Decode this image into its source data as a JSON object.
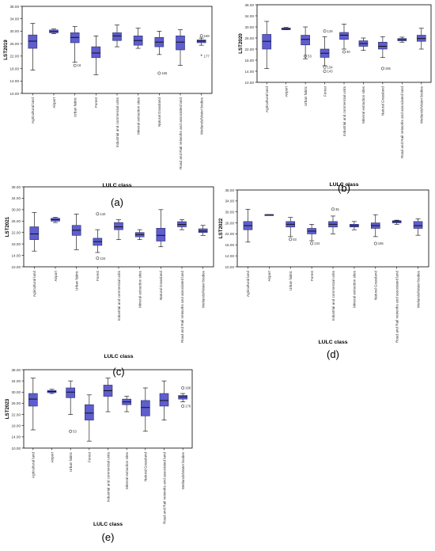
{
  "chart_data": [
    {
      "type": "box",
      "panel_label": "(a)",
      "ylabel": "LST2019",
      "xlabel": "LULC class",
      "ylim": [
        10,
        38
      ],
      "yticks": [
        10,
        14,
        18,
        22,
        26,
        30,
        34,
        38
      ],
      "ytick_labels": [
        "10.00",
        "14.00",
        "18.00",
        "22.00",
        "26.00",
        "30.00",
        "34.00",
        "38.00"
      ],
      "categories": [
        "Agricultural land",
        "Airport",
        "Urban fabric",
        "Forest",
        "Industrial and commercial units",
        "Mineral extraction sites",
        "Natural Grassland",
        "Road and Rail networks and associated land",
        "Wetlands/Water bodies"
      ],
      "boxes": [
        {
          "min": 17.5,
          "q1": 24.5,
          "median": 26.8,
          "q3": 28.8,
          "max": 32.5
        },
        {
          "min": 29.2,
          "q1": 29.5,
          "median": 29.9,
          "q3": 30.4,
          "max": 30.7
        },
        {
          "min": 20.0,
          "q1": 26.3,
          "median": 28.0,
          "q3": 29.5,
          "max": 31.5
        },
        {
          "min": 16.0,
          "q1": 21.5,
          "median": 23.0,
          "q3": 25.0,
          "max": 28.5
        },
        {
          "min": 25.0,
          "q1": 27.0,
          "median": 28.5,
          "q3": 29.5,
          "max": 32.0
        },
        {
          "min": 24.5,
          "q1": 25.5,
          "median": 27.0,
          "q3": 28.5,
          "max": 31.0
        },
        {
          "min": 22.5,
          "q1": 25.0,
          "median": 26.5,
          "q3": 28.0,
          "max": 30.0
        },
        {
          "min": 19.0,
          "q1": 24.0,
          "median": 26.5,
          "q3": 28.5,
          "max": 30.5
        },
        {
          "min": 25.5,
          "q1": 26.3,
          "median": 26.8,
          "q3": 27.2,
          "max": 27.8
        }
      ],
      "outliers": [
        {
          "category": 2,
          "value": 19.0,
          "marker": "circle",
          "label": "16"
        },
        {
          "category": 6,
          "value": 16.5,
          "marker": "circle",
          "label": "165"
        },
        {
          "category": 8,
          "value": 28.5,
          "marker": "circle",
          "label": "168"
        },
        {
          "category": 8,
          "value": 22.0,
          "marker": "star",
          "label": "177"
        }
      ]
    },
    {
      "type": "box",
      "panel_label": "(b)",
      "ylabel": "LST2020",
      "xlabel": "LULC class",
      "ylim": [
        10,
        38
      ],
      "yticks": [
        10,
        14,
        18,
        22,
        26,
        30,
        34,
        38
      ],
      "ytick_labels": [
        "10.00",
        "14.00",
        "18.00",
        "22.00",
        "26.00",
        "30.00",
        "34.00",
        "38.00"
      ],
      "categories": [
        "Agricultural land",
        "Airport",
        "Urban fabric",
        "Forest",
        "Industrial and commercial units",
        "Mineral extraction sites",
        "Natural Grassland",
        "Road and Rail networks and associated land",
        "Wetlands/Water bodies"
      ],
      "boxes": [
        {
          "min": 15.0,
          "q1": 22.0,
          "median": 24.8,
          "q3": 27.3,
          "max": 32.0
        },
        {
          "min": 29.0,
          "q1": 29.0,
          "median": 29.2,
          "q3": 29.6,
          "max": 29.8
        },
        {
          "min": 18.5,
          "q1": 23.5,
          "median": 25.5,
          "q3": 27.0,
          "max": 30.0
        },
        {
          "min": 16.0,
          "q1": 19.0,
          "median": 20.5,
          "q3": 22.0,
          "max": 26.5
        },
        {
          "min": 22.0,
          "q1": 25.5,
          "median": 27.0,
          "q3": 28.0,
          "max": 31.0
        },
        {
          "min": 21.5,
          "q1": 23.0,
          "median": 24.0,
          "q3": 25.0,
          "max": 26.0
        },
        {
          "min": 19.0,
          "q1": 22.0,
          "median": 23.0,
          "q3": 24.5,
          "max": 26.5
        },
        {
          "min": 24.5,
          "q1": 25.0,
          "median": 25.4,
          "q3": 25.8,
          "max": 26.3
        },
        {
          "min": 22.0,
          "q1": 24.8,
          "median": 25.8,
          "q3": 27.0,
          "max": 29.5
        }
      ],
      "outliers": [
        {
          "category": 2,
          "value": 19.5,
          "marker": "circle",
          "label": "53"
        },
        {
          "category": 3,
          "value": 28.5,
          "marker": "circle",
          "label": "129"
        },
        {
          "category": 3,
          "value": 15.5,
          "marker": "circle",
          "label": "134"
        },
        {
          "category": 3,
          "value": 14.0,
          "marker": "circle",
          "label": "143"
        },
        {
          "category": 4,
          "value": 21.0,
          "marker": "circle",
          "label": "30"
        },
        {
          "category": 6,
          "value": 15.0,
          "marker": "circle",
          "label": "165"
        }
      ]
    },
    {
      "type": "box",
      "panel_label": "(c)",
      "ylabel": "LST2021",
      "xlabel": "LULC class",
      "ylim": [
        10,
        38
      ],
      "yticks": [
        10,
        14,
        18,
        22,
        26,
        30,
        34,
        38
      ],
      "ytick_labels": [
        "10.00",
        "14.00",
        "18.00",
        "22.00",
        "26.00",
        "30.00",
        "34.00",
        "38.00"
      ],
      "categories": [
        "Agricultural land",
        "Airport",
        "Urban fabric",
        "Forest",
        "Industrial and commercial units",
        "Mineral extraction sites",
        "Natural Grassland",
        "Road and Rail networks and associated land",
        "Wetlands/Water bodies"
      ],
      "boxes": [
        {
          "min": 15.5,
          "q1": 19.5,
          "median": 21.5,
          "q3": 24.0,
          "max": 29.0
        },
        {
          "min": 25.5,
          "q1": 26.0,
          "median": 26.5,
          "q3": 27.0,
          "max": 27.3
        },
        {
          "min": 16.0,
          "q1": 21.0,
          "median": 22.8,
          "q3": 24.5,
          "max": 28.5
        },
        {
          "min": 15.0,
          "q1": 17.5,
          "median": 18.8,
          "q3": 20.0,
          "max": 23.0
        },
        {
          "min": 19.5,
          "q1": 23.0,
          "median": 24.0,
          "q3": 25.5,
          "max": 26.5
        },
        {
          "min": 19.5,
          "q1": 20.5,
          "median": 21.3,
          "q3": 22.0,
          "max": 23.0
        },
        {
          "min": 17.0,
          "q1": 19.0,
          "median": 21.0,
          "q3": 23.5,
          "max": 30.0
        },
        {
          "min": 23.0,
          "q1": 24.0,
          "median": 24.8,
          "q3": 25.8,
          "max": 26.5
        },
        {
          "min": 21.0,
          "q1": 22.0,
          "median": 22.5,
          "q3": 23.3,
          "max": 24.5
        }
      ],
      "outliers": [
        {
          "category": 3,
          "value": 28.5,
          "marker": "circle",
          "label": "140"
        },
        {
          "category": 3,
          "value": 13.0,
          "marker": "circle",
          "label": "134"
        }
      ]
    },
    {
      "type": "box",
      "panel_label": "(d)",
      "ylabel": "LST2022",
      "xlabel": "LULC class",
      "ylim": [
        10,
        38
      ],
      "yticks": [
        10,
        14,
        18,
        22,
        26,
        30,
        34,
        38
      ],
      "ytick_labels": [
        "10.00",
        "14.00",
        "18.00",
        "22.00",
        "26.00",
        "30.00",
        "34.00",
        "38.00"
      ],
      "categories": [
        "Agricultural land",
        "Airport",
        "Urban fabric",
        "Forest",
        "Industrial and commercial units",
        "Mineral extraction sites",
        "Natural Grassland",
        "Road and Rail networks and associated land",
        "Wetlands/Water bodies"
      ],
      "boxes": [
        {
          "min": 19.0,
          "q1": 23.5,
          "median": 25.0,
          "q3": 26.5,
          "max": 31.0
        },
        {
          "min": 29.0,
          "q1": 29.0,
          "median": 29.0,
          "q3": 29.0,
          "max": 29.0
        },
        {
          "min": 21.0,
          "q1": 24.5,
          "median": 25.5,
          "q3": 26.5,
          "max": 28.0
        },
        {
          "min": 19.5,
          "q1": 22.0,
          "median": 23.0,
          "q3": 24.0,
          "max": 25.5
        },
        {
          "min": 22.0,
          "q1": 24.5,
          "median": 25.5,
          "q3": 26.5,
          "max": 28.5
        },
        {
          "min": 23.5,
          "q1": 24.5,
          "median": 25.0,
          "q3": 25.5,
          "max": 26.5
        },
        {
          "min": 21.0,
          "q1": 24.0,
          "median": 25.0,
          "q3": 26.0,
          "max": 29.0
        },
        {
          "min": 25.5,
          "q1": 26.0,
          "median": 26.5,
          "q3": 26.8,
          "max": 27.0
        },
        {
          "min": 21.5,
          "q1": 24.0,
          "median": 25.0,
          "q3": 26.5,
          "max": 27.5
        }
      ],
      "outliers": [
        {
          "category": 2,
          "value": 20.0,
          "marker": "circle",
          "label": "53"
        },
        {
          "category": 3,
          "value": 18.5,
          "marker": "circle",
          "label": "134"
        },
        {
          "category": 4,
          "value": 31.0,
          "marker": "circle",
          "label": "35"
        },
        {
          "category": 6,
          "value": 18.5,
          "marker": "circle",
          "label": "165"
        }
      ]
    },
    {
      "type": "box",
      "panel_label": "(e)",
      "ylabel": "LST2023",
      "xlabel": "LULC class",
      "ylim": [
        10,
        38
      ],
      "yticks": [
        10,
        14,
        18,
        22,
        26,
        30,
        34,
        38
      ],
      "ytick_labels": [
        "10.00",
        "14.00",
        "18.00",
        "22.00",
        "26.00",
        "30.00",
        "34.00",
        "38.00"
      ],
      "categories": [
        "Agricultural land",
        "Airport",
        "Urban fabric",
        "Forest",
        "Industrial and commercial units",
        "Mineral extraction sites",
        "Natural Grassland",
        "Road and Rail networks and associated land",
        "Wetlands/Water bodies"
      ],
      "boxes": [
        {
          "min": 16.5,
          "q1": 25.0,
          "median": 27.5,
          "q3": 29.5,
          "max": 35.0
        },
        {
          "min": 29.5,
          "q1": 29.8,
          "median": 30.2,
          "q3": 30.6,
          "max": 31.0
        },
        {
          "min": 22.0,
          "q1": 28.0,
          "median": 30.0,
          "q3": 31.5,
          "max": 34.0
        },
        {
          "min": 12.5,
          "q1": 20.0,
          "median": 22.5,
          "q3": 25.5,
          "max": 29.0
        },
        {
          "min": 23.0,
          "q1": 28.5,
          "median": 30.5,
          "q3": 32.5,
          "max": 35.0
        },
        {
          "min": 23.0,
          "q1": 25.5,
          "median": 26.5,
          "q3": 27.5,
          "max": 28.5
        },
        {
          "min": 16.0,
          "q1": 21.5,
          "median": 24.5,
          "q3": 27.0,
          "max": 31.5
        },
        {
          "min": 20.0,
          "q1": 25.0,
          "median": 27.0,
          "q3": 29.5,
          "max": 34.0
        },
        {
          "min": 26.5,
          "q1": 27.5,
          "median": 28.3,
          "q3": 28.8,
          "max": 29.5
        }
      ],
      "outliers": [
        {
          "category": 2,
          "value": 16.0,
          "marker": "circle",
          "label": "53"
        },
        {
          "category": 8,
          "value": 31.5,
          "marker": "circle",
          "label": "168"
        },
        {
          "category": 8,
          "value": 25.0,
          "marker": "circle",
          "label": "176"
        }
      ]
    }
  ],
  "style": {
    "box_fill": "#5e5ecf",
    "box_stroke": "#2a2a6a",
    "median_color": "#111111",
    "frame_color": "#000000",
    "tick_label_color": "#333333"
  }
}
